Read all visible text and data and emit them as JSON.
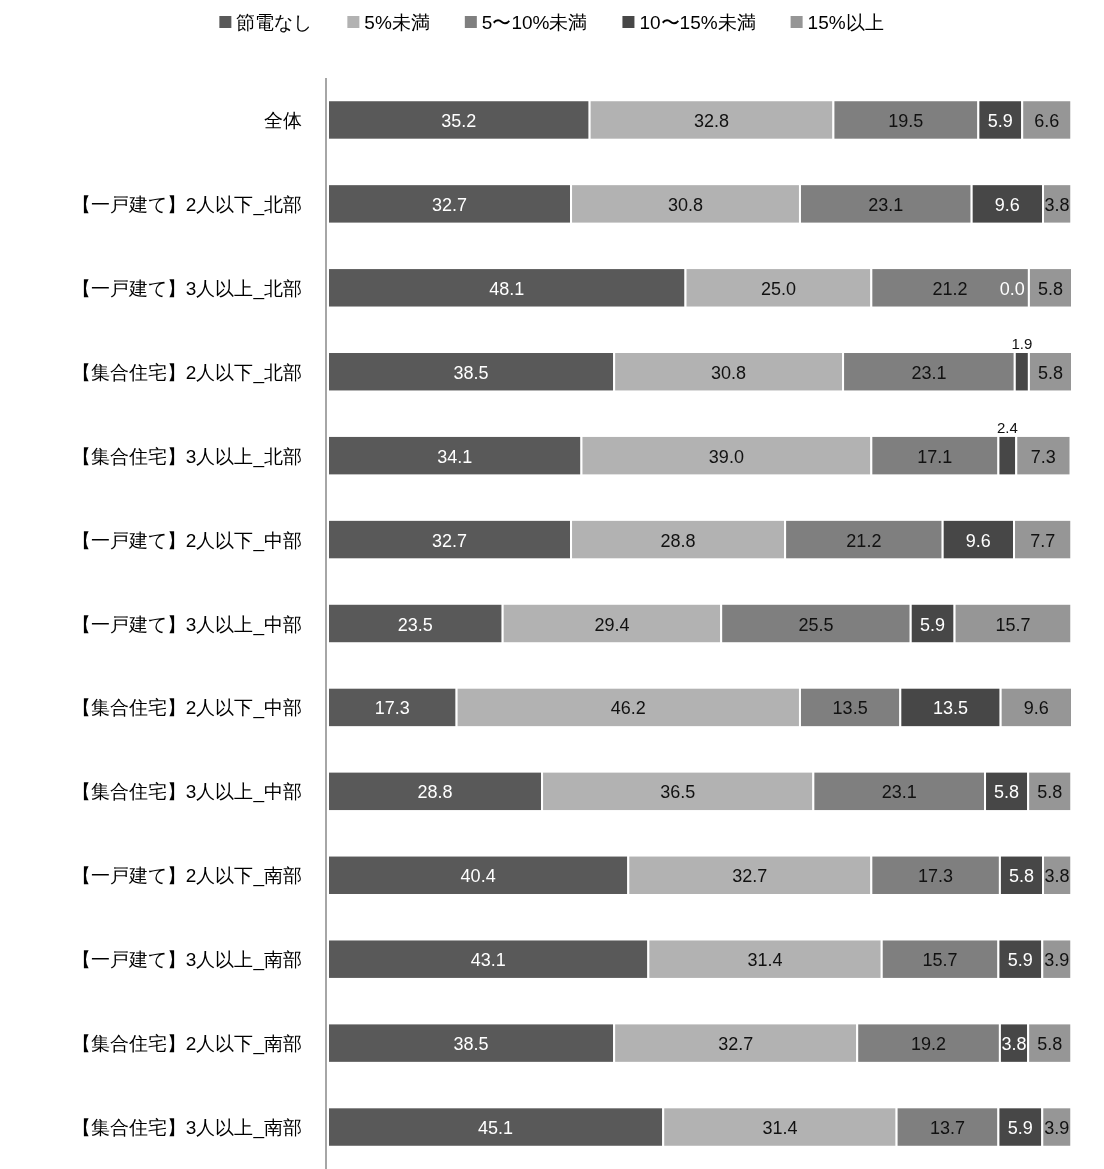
{
  "chart_data": {
    "type": "bar",
    "orientation": "horizontal",
    "stacked": true,
    "data_labels": true,
    "legend": "top",
    "grid": false,
    "categories": [
      "全体",
      "【一戸建て】2人以下_北部",
      "【一戸建て】3人以上_北部",
      "【集合住宅】2人以下_北部",
      "【集合住宅】3人以上_北部",
      "【一戸建て】2人以下_中部",
      "【一戸建て】3人以上_中部",
      "【集合住宅】2人以下_中部",
      "【集合住宅】3人以上_中部",
      "【一戸建て】2人以下_南部",
      "【一戸建て】3人以上_南部",
      "【集合住宅】2人以下_南部",
      "【集合住宅】3人以上_南部"
    ],
    "series": [
      {
        "name": "節電なし",
        "color": "#595959",
        "values": [
          35.2,
          32.7,
          48.1,
          38.5,
          34.1,
          32.7,
          23.5,
          17.3,
          28.8,
          40.4,
          43.1,
          38.5,
          45.1
        ]
      },
      {
        "name": "5%未満",
        "color": "#b2b2b2",
        "values": [
          32.8,
          30.8,
          25.0,
          30.8,
          39.0,
          28.8,
          29.4,
          46.2,
          36.5,
          32.7,
          31.4,
          32.7,
          31.4
        ],
        "value_labels": [
          "32.8",
          "30.8",
          "25.0",
          "30.8",
          "39.0",
          "28.8",
          "29.4",
          "46.2",
          "36.5",
          "32.7",
          "31.4",
          "32.7",
          "31.4"
        ]
      },
      {
        "name": "5〜10%未満",
        "color": "#7f7f7f",
        "values": [
          19.5,
          23.1,
          21.2,
          23.1,
          17.1,
          21.2,
          25.5,
          13.5,
          23.1,
          17.3,
          15.7,
          19.2,
          13.7
        ]
      },
      {
        "name": "10〜15%未満",
        "color": "#474747",
        "values": [
          5.9,
          9.6,
          0.0,
          1.9,
          2.4,
          9.6,
          5.9,
          13.5,
          5.8,
          5.8,
          5.9,
          3.8,
          5.9
        ],
        "value_labels": [
          "5.9",
          "9.6",
          "0.0",
          "1.9",
          "2.4",
          "9.6",
          "5.9",
          "13.5",
          "5.8",
          "5.8",
          "5.9",
          "3.8",
          "5.9"
        ]
      },
      {
        "name": "15%以上",
        "color": "#969696",
        "values": [
          6.6,
          3.8,
          5.8,
          5.8,
          7.3,
          7.7,
          15.7,
          9.6,
          5.8,
          3.8,
          3.9,
          5.8,
          3.9
        ]
      }
    ]
  }
}
